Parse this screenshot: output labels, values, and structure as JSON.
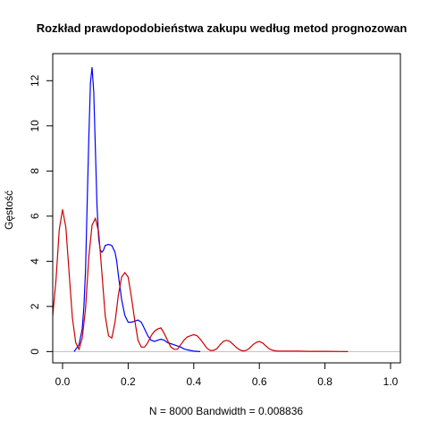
{
  "chart_data": {
    "type": "line",
    "title": "Rozkład prawdopodobieństwa zakupu według metod prognozowan",
    "xlabel": "N = 8000   Bandwidth = 0.008836",
    "ylabel": "Gęstość",
    "xlim": [
      -0.03,
      1.03
    ],
    "ylim": [
      -0.5,
      13.2
    ],
    "x_ticks": [
      0.0,
      0.2,
      0.4,
      0.6,
      0.8,
      1.0
    ],
    "x_tick_labels": [
      "0.0",
      "0.2",
      "0.4",
      "0.6",
      "0.8",
      "1.0"
    ],
    "y_ticks": [
      0,
      2,
      4,
      6,
      8,
      10,
      12
    ],
    "y_tick_labels": [
      "0",
      "2",
      "4",
      "6",
      "8",
      "10",
      "12"
    ],
    "grid": false,
    "baseline": 0,
    "series": [
      {
        "color": "#0000ff",
        "x": [
          0.035,
          0.05,
          0.06,
          0.065,
          0.07,
          0.075,
          0.08,
          0.085,
          0.09,
          0.095,
          0.1,
          0.105,
          0.11,
          0.115,
          0.12,
          0.125,
          0.13,
          0.14,
          0.15,
          0.16,
          0.165,
          0.17,
          0.18,
          0.19,
          0.2,
          0.21,
          0.22,
          0.23,
          0.24,
          0.25,
          0.26,
          0.27,
          0.28,
          0.29,
          0.3,
          0.31,
          0.32,
          0.33,
          0.34,
          0.35,
          0.36,
          0.37,
          0.38,
          0.39,
          0.4,
          0.42
        ],
        "y": [
          0.0,
          0.3,
          1.0,
          2.0,
          3.6,
          6.5,
          9.5,
          11.9,
          12.6,
          11.5,
          9.0,
          6.5,
          5.0,
          4.5,
          4.4,
          4.5,
          4.7,
          4.75,
          4.7,
          4.4,
          4.0,
          3.4,
          2.3,
          1.6,
          1.3,
          1.3,
          1.35,
          1.4,
          1.3,
          1.0,
          0.7,
          0.5,
          0.45,
          0.5,
          0.55,
          0.5,
          0.4,
          0.35,
          0.3,
          0.25,
          0.2,
          0.12,
          0.08,
          0.05,
          0.02,
          0.0
        ]
      },
      {
        "color": "#cc0000",
        "x": [
          -0.03,
          -0.02,
          -0.01,
          0.0,
          0.01,
          0.02,
          0.03,
          0.04,
          0.05,
          0.06,
          0.07,
          0.08,
          0.09,
          0.1,
          0.11,
          0.12,
          0.13,
          0.14,
          0.15,
          0.16,
          0.17,
          0.18,
          0.19,
          0.2,
          0.21,
          0.22,
          0.23,
          0.24,
          0.25,
          0.26,
          0.27,
          0.28,
          0.29,
          0.3,
          0.31,
          0.32,
          0.33,
          0.34,
          0.35,
          0.36,
          0.37,
          0.38,
          0.39,
          0.4,
          0.41,
          0.42,
          0.43,
          0.44,
          0.45,
          0.46,
          0.47,
          0.48,
          0.49,
          0.5,
          0.51,
          0.52,
          0.53,
          0.54,
          0.55,
          0.56,
          0.57,
          0.58,
          0.59,
          0.6,
          0.61,
          0.62,
          0.63,
          0.64,
          0.65,
          0.66,
          0.68,
          0.7,
          0.72,
          0.75,
          0.8,
          0.87
        ],
        "y": [
          1.6,
          3.2,
          5.4,
          6.3,
          5.5,
          3.5,
          1.5,
          0.4,
          0.1,
          0.6,
          1.9,
          4.2,
          5.6,
          5.9,
          5.3,
          3.5,
          1.6,
          0.7,
          0.6,
          1.3,
          2.5,
          3.3,
          3.5,
          3.3,
          2.4,
          1.4,
          0.5,
          0.2,
          0.2,
          0.4,
          0.7,
          0.9,
          1.0,
          1.05,
          0.8,
          0.5,
          0.2,
          0.1,
          0.1,
          0.3,
          0.5,
          0.65,
          0.7,
          0.75,
          0.7,
          0.55,
          0.35,
          0.15,
          0.05,
          0.05,
          0.12,
          0.3,
          0.45,
          0.5,
          0.45,
          0.32,
          0.18,
          0.08,
          0.03,
          0.05,
          0.15,
          0.3,
          0.4,
          0.45,
          0.38,
          0.25,
          0.12,
          0.06,
          0.03,
          0.02,
          0.02,
          0.02,
          0.02,
          0.01,
          0.01,
          0.0
        ]
      }
    ]
  }
}
